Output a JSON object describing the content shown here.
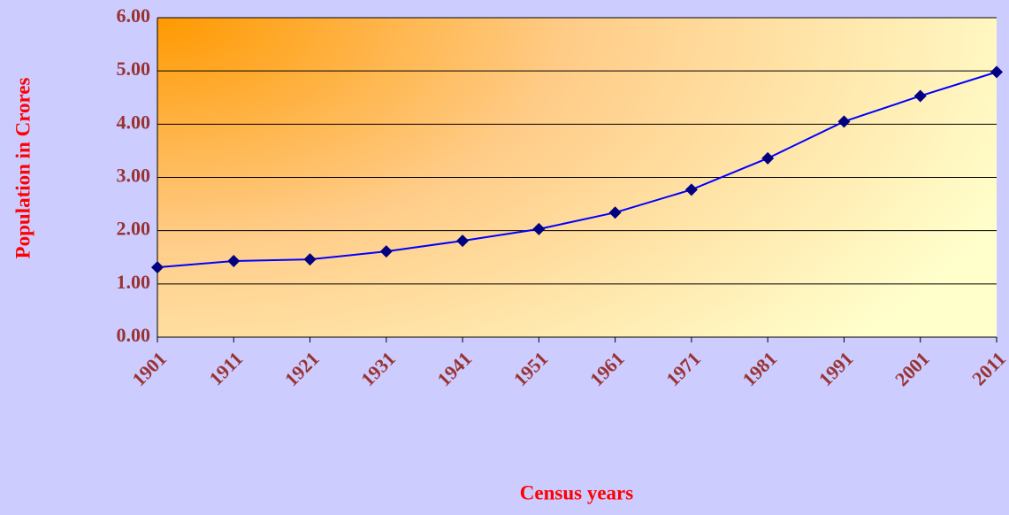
{
  "chart_data": {
    "type": "line",
    "xlabel": "Census years",
    "ylabel": "Population in Crores",
    "categories": [
      "1901",
      "1911",
      "1921",
      "1931",
      "1941",
      "1951",
      "1961",
      "1971",
      "1981",
      "1991",
      "2001",
      "2011"
    ],
    "series": [
      {
        "name": "Population",
        "color": "#0000ff",
        "marker_color": "#000080",
        "values": [
          1.31,
          1.43,
          1.46,
          1.61,
          1.81,
          2.03,
          2.34,
          2.77,
          3.36,
          4.05,
          4.53,
          4.98
        ]
      }
    ],
    "ylim": [
      0,
      6
    ],
    "yticks": [
      {
        "value": 0,
        "label": "0.00"
      },
      {
        "value": 1,
        "label": "1.00"
      },
      {
        "value": 2,
        "label": "2.00"
      },
      {
        "value": 3,
        "label": "3.00"
      },
      {
        "value": 4,
        "label": "4.00"
      },
      {
        "value": 5,
        "label": "5.00"
      },
      {
        "value": 6,
        "label": "6.00"
      }
    ],
    "grid": true
  }
}
